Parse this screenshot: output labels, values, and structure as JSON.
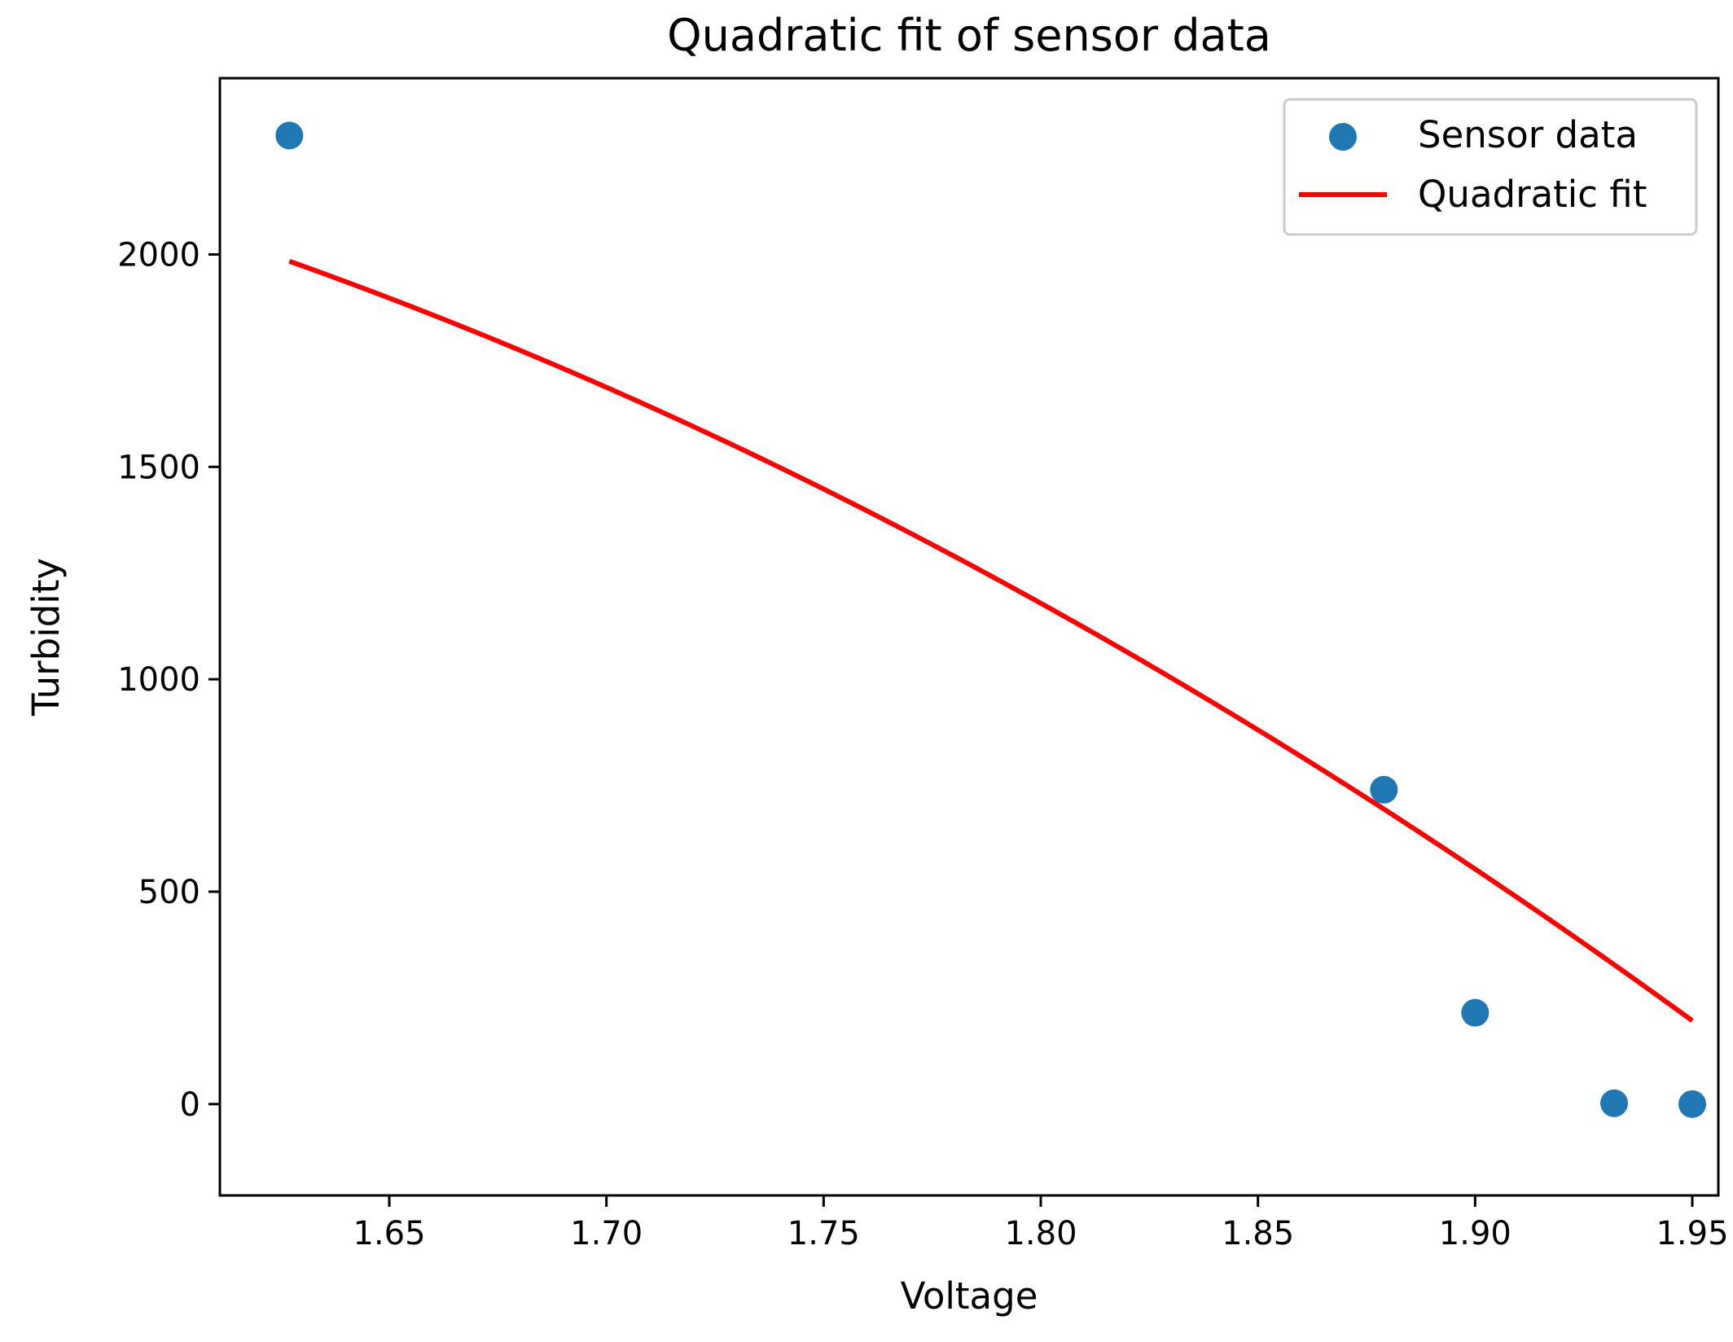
{
  "chart_data": {
    "type": "scatter",
    "title": "Quadratic fit of sensor data",
    "xlabel": "Voltage",
    "ylabel": "Turbidity",
    "xlim": [
      1.611,
      1.956
    ],
    "ylim": [
      -215,
      2415
    ],
    "xticks": [
      1.65,
      1.7,
      1.75,
      1.8,
      1.85,
      1.9,
      1.95
    ],
    "xtick_labels": [
      "1.65",
      "1.70",
      "1.75",
      "1.80",
      "1.85",
      "1.90",
      "1.95"
    ],
    "yticks": [
      0,
      500,
      1000,
      1500,
      2000
    ],
    "ytick_labels": [
      "0",
      "500",
      "1000",
      "1500",
      "2000"
    ],
    "grid": false,
    "legend_position": "top-right",
    "series": [
      {
        "name": "Sensor data",
        "kind": "scatter",
        "color": "#1f77b4",
        "points": [
          {
            "x": 1.627,
            "y": 2280
          },
          {
            "x": 1.879,
            "y": 740
          },
          {
            "x": 1.9,
            "y": 215
          },
          {
            "x": 1.932,
            "y": 2
          },
          {
            "x": 1.95,
            "y": 0
          }
        ]
      },
      {
        "name": "Quadratic fit",
        "kind": "line",
        "color": "#ff0000",
        "coefficients": [
          -5875,
          15480,
          -7650
        ],
        "x_range": [
          1.627,
          1.95
        ]
      }
    ]
  }
}
